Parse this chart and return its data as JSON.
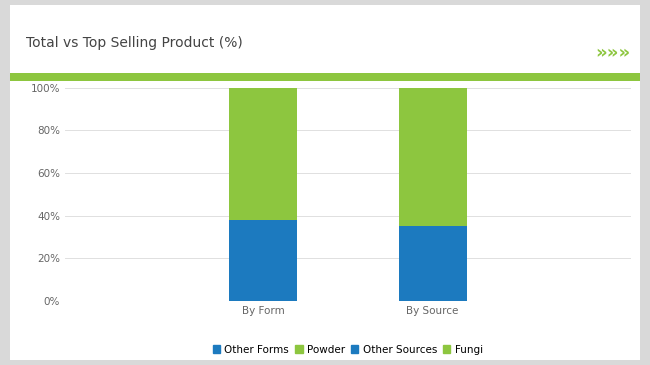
{
  "title": "Total vs Top Selling Product (%)",
  "title_fontsize": 10,
  "background_outer": "#d9d9d9",
  "background_inner": "#ffffff",
  "header_line_color": "#8dc63f",
  "arrow_color": "#8dc63f",
  "categories": [
    "By Form",
    "By Source"
  ],
  "blue_color": "#1c7abf",
  "green_color": "#8dc63f",
  "blue_vals": [
    38,
    35
  ],
  "green_vals": [
    62,
    65
  ],
  "ylim": [
    0,
    100
  ],
  "ytick_labels": [
    "0%",
    "20%",
    "40%",
    "60%",
    "80%",
    "100%"
  ],
  "ytick_values": [
    0,
    20,
    40,
    60,
    80,
    100
  ],
  "bar_width": 0.12,
  "x_positions": [
    0.35,
    0.65
  ],
  "xlim": [
    0,
    1
  ],
  "tick_fontsize": 7.5,
  "legend_fontsize": 7.5,
  "legend_labels": [
    "Other Forms",
    "Powder",
    "Other Sources",
    "Fungi"
  ]
}
